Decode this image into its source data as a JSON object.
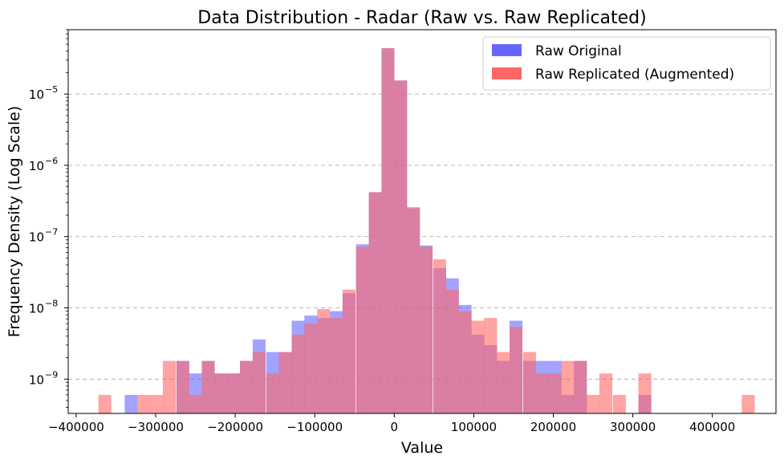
{
  "chart_data": {
    "type": "histogram",
    "title": "Data Distribution - Radar (Raw vs. Raw Replicated)",
    "xlabel": "Value",
    "ylabel": "Frequency Density (Log Scale)",
    "yscale": "log",
    "xlim": [
      -410000,
      480000
    ],
    "ylim": [
      3.3e-10,
      8e-05
    ],
    "bin_width": 16200,
    "x_ticks": [
      -400000,
      -300000,
      -200000,
      -100000,
      0,
      100000,
      200000,
      300000,
      400000
    ],
    "x_tick_labels": [
      "−400000",
      "−300000",
      "−200000",
      "−100000",
      "0",
      "100000",
      "200000",
      "300000",
      "400000"
    ],
    "y_ticks": [
      1e-09,
      1e-08,
      1e-07,
      1e-06,
      1e-05
    ],
    "y_tick_exponents": [
      "−9",
      "−8",
      "−7",
      "−6",
      "−5"
    ],
    "y_tick_base": "10",
    "grid": "y dashed",
    "legend_position": "top-right",
    "series": [
      {
        "name": "Raw Original",
        "color": "#6666ff",
        "bins": [
          [
            -339000,
            6e-10
          ],
          [
            -274000,
            1.8e-09
          ],
          [
            -258000,
            1.2e-09
          ],
          [
            -242000,
            1.8e-09
          ],
          [
            -226000,
            1.2e-09
          ],
          [
            -210000,
            1.2e-09
          ],
          [
            -194000,
            1.8e-09
          ],
          [
            -178000,
            3.6e-09
          ],
          [
            -161000,
            2.4e-09
          ],
          [
            -145000,
            2.4e-09
          ],
          [
            -129000,
            6.6e-09
          ],
          [
            -113000,
            7.8e-09
          ],
          [
            -97000,
            7.2e-09
          ],
          [
            -81000,
            9e-09
          ],
          [
            -65000,
            1.6e-08
          ],
          [
            -48000,
            7.8e-08
          ],
          [
            -32000,
            4.2e-07
          ],
          [
            -16000,
            4.4e-05
          ],
          [
            0,
            1.55e-05
          ],
          [
            16000,
            2.5e-07
          ],
          [
            32000,
            7.5e-08
          ],
          [
            49000,
            3.6e-08
          ],
          [
            65000,
            2.6e-08
          ],
          [
            81000,
            1.1e-08
          ],
          [
            97000,
            4.2e-09
          ],
          [
            113000,
            3e-09
          ],
          [
            129000,
            1.8e-09
          ],
          [
            145000,
            6.6e-09
          ],
          [
            162000,
            1.8e-09
          ],
          [
            178000,
            1.8e-09
          ],
          [
            194000,
            1.8e-09
          ],
          [
            210000,
            6e-10
          ],
          [
            226000,
            1.8e-09
          ],
          [
            307000,
            6e-10
          ]
        ]
      },
      {
        "name": "Raw Replicated (Augmented)",
        "color": "#ff6666",
        "bins": [
          [
            -372000,
            6e-10
          ],
          [
            -323000,
            6e-10
          ],
          [
            -307000,
            6e-10
          ],
          [
            -291000,
            1.8e-09
          ],
          [
            -274000,
            1.8e-09
          ],
          [
            -258000,
            6e-10
          ],
          [
            -242000,
            1.8e-09
          ],
          [
            -226000,
            1.2e-09
          ],
          [
            -210000,
            1.2e-09
          ],
          [
            -194000,
            1.8e-09
          ],
          [
            -178000,
            2.4e-09
          ],
          [
            -161000,
            1.2e-09
          ],
          [
            -145000,
            2.4e-09
          ],
          [
            -129000,
            4.2e-09
          ],
          [
            -113000,
            6e-09
          ],
          [
            -97000,
            9.6e-09
          ],
          [
            -81000,
            7.2e-09
          ],
          [
            -65000,
            1.8e-08
          ],
          [
            -48000,
            7.2e-08
          ],
          [
            -32000,
            4.2e-07
          ],
          [
            -16000,
            4.4e-05
          ],
          [
            0,
            1.55e-05
          ],
          [
            16000,
            2.6e-07
          ],
          [
            32000,
            7.2e-08
          ],
          [
            49000,
            4.8e-08
          ],
          [
            65000,
            1.8e-08
          ],
          [
            81000,
            9e-09
          ],
          [
            97000,
            6.6e-09
          ],
          [
            113000,
            7.2e-09
          ],
          [
            129000,
            2.4e-09
          ],
          [
            145000,
            5.4e-09
          ],
          [
            162000,
            2.4e-09
          ],
          [
            178000,
            1.2e-09
          ],
          [
            194000,
            1.2e-09
          ],
          [
            210000,
            1.8e-09
          ],
          [
            226000,
            1.8e-09
          ],
          [
            242000,
            6e-10
          ],
          [
            258000,
            1.2e-09
          ],
          [
            275000,
            6e-10
          ],
          [
            307000,
            1.2e-09
          ],
          [
            437000,
            6e-10
          ]
        ]
      }
    ]
  }
}
